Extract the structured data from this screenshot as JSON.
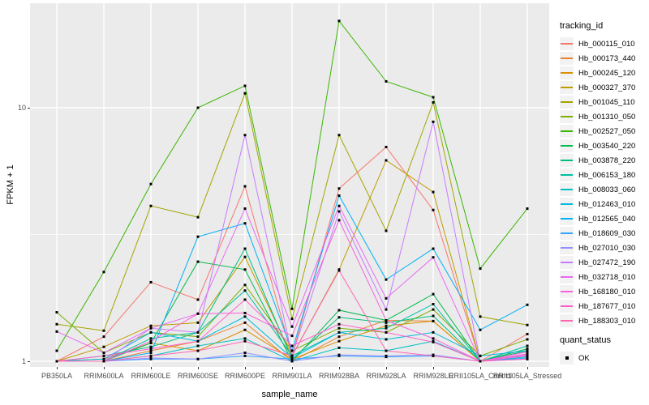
{
  "chart_data": {
    "type": "line",
    "title": "",
    "xlabel": "sample_name",
    "ylabel": "FPKM + 1",
    "y_scale": "log10",
    "y_ticks": [
      1,
      10
    ],
    "y_minor_gridlines": [
      3.1623
    ],
    "ylim": [
      0.95,
      25.5
    ],
    "grid": true,
    "panel_background": "#EBEBEB",
    "gridline_color": "#FFFFFF",
    "tick_label_color": "#4D4D4D",
    "marker": "black-square",
    "marker_color": "#000000",
    "categories": [
      "PB350LA",
      "RRIM600LA",
      "RRIM600LE",
      "RRIM600SE",
      "RRIM600PE",
      "RRIM901LA",
      "RRIM928BA",
      "RRIM928LA",
      "RRIM928LE",
      "RRII105LA_Control",
      "RRII105LA_Stressed"
    ],
    "legend": {
      "title": "tracking_id",
      "position": "right"
    },
    "legend2": {
      "title": "quant_status",
      "items": [
        {
          "label": "OK",
          "marker": "black-square"
        }
      ]
    },
    "series": [
      {
        "name": "Hb_000115_010",
        "color": "#F8766D",
        "values": [
          1.0,
          1.25,
          2.05,
          1.75,
          4.9,
          1.05,
          4.8,
          7.0,
          3.95,
          1.0,
          1.28
        ]
      },
      {
        "name": "Hb_000173_440",
        "color": "#EA8331",
        "values": [
          1.0,
          1.0,
          1.1,
          1.2,
          1.42,
          1.0,
          1.25,
          1.45,
          1.44,
          1.0,
          1.07
        ]
      },
      {
        "name": "Hb_000245_120",
        "color": "#D89000",
        "values": [
          1.0,
          1.02,
          1.18,
          1.1,
          1.33,
          1.02,
          1.2,
          1.38,
          1.44,
          1.0,
          1.05
        ]
      },
      {
        "name": "Hb_000327_370",
        "color": "#C09B00",
        "values": [
          1.0,
          1.14,
          1.38,
          1.42,
          2.58,
          1.05,
          2.3,
          6.2,
          4.65,
          1.0,
          1.1
        ]
      },
      {
        "name": "Hb_001045_110",
        "color": "#A3A500",
        "values": [
          1.4,
          1.32,
          4.1,
          3.7,
          11.4,
          1.47,
          7.8,
          3.27,
          10.5,
          1.5,
          1.39
        ]
      },
      {
        "name": "Hb_001310_050",
        "color": "#7CAE00",
        "values": [
          1.56,
          1.08,
          1.3,
          1.25,
          2.0,
          1.1,
          1.35,
          1.3,
          1.6,
          1.05,
          1.22
        ]
      },
      {
        "name": "Hb_002527_050",
        "color": "#39B600",
        "values": [
          1.1,
          2.25,
          5.0,
          10.0,
          12.2,
          1.61,
          22.0,
          12.7,
          11.0,
          2.32,
          4.0
        ]
      },
      {
        "name": "Hb_003540_220",
        "color": "#00BB4E",
        "values": [
          1.0,
          1.0,
          1.18,
          2.47,
          2.3,
          1.0,
          1.59,
          1.45,
          1.84,
          1.0,
          1.12
        ]
      },
      {
        "name": "Hb_003878_220",
        "color": "#00BF7D",
        "values": [
          1.0,
          1.05,
          1.14,
          1.3,
          2.78,
          1.02,
          1.49,
          1.42,
          1.51,
          1.0,
          1.1
        ]
      },
      {
        "name": "Hb_006153_180",
        "color": "#00C1A3",
        "values": [
          1.0,
          1.0,
          1.23,
          1.3,
          1.9,
          1.05,
          1.3,
          1.35,
          1.68,
          1.0,
          1.15
        ]
      },
      {
        "name": "Hb_008033_060",
        "color": "#00BFC4",
        "values": [
          1.0,
          1.0,
          1.05,
          1.15,
          1.23,
          1.0,
          1.13,
          1.1,
          1.2,
          1.0,
          1.04
        ]
      },
      {
        "name": "Hb_012463_010",
        "color": "#00BAE0",
        "values": [
          1.0,
          1.02,
          1.3,
          1.2,
          1.5,
          1.03,
          1.3,
          1.22,
          1.3,
          1.05,
          1.1
        ]
      },
      {
        "name": "Hb_012565_040",
        "color": "#00B0F6",
        "values": [
          1.0,
          1.0,
          1.08,
          3.1,
          3.5,
          1.1,
          4.5,
          2.1,
          2.78,
          1.33,
          1.67
        ]
      },
      {
        "name": "Hb_018609_030",
        "color": "#35A2FF",
        "values": [
          1.0,
          1.0,
          1.02,
          1.02,
          1.05,
          1.02,
          1.05,
          1.04,
          1.05,
          1.0,
          1.03
        ]
      },
      {
        "name": "Hb_027010_030",
        "color": "#9590FF",
        "values": [
          1.0,
          1.0,
          1.03,
          1.02,
          1.08,
          1.0,
          1.06,
          1.05,
          1.06,
          1.0,
          1.02
        ]
      },
      {
        "name": "Hb_027472_190",
        "color": "#C77CFF",
        "values": [
          1.0,
          1.0,
          1.35,
          1.3,
          7.8,
          1.05,
          3.9,
          1.6,
          8.8,
          1.0,
          1.05
        ]
      },
      {
        "name": "Hb_032718_010",
        "color": "#E76BF3",
        "values": [
          1.31,
          1.08,
          1.35,
          1.54,
          4.0,
          1.37,
          4.1,
          1.77,
          2.57,
          1.0,
          1.07
        ]
      },
      {
        "name": "Hb_168180_010",
        "color": "#FA62DB",
        "values": [
          1.0,
          1.0,
          1.2,
          1.54,
          1.55,
          1.26,
          3.6,
          1.45,
          1.23,
          1.0,
          1.09
        ]
      },
      {
        "name": "Hb_187677_010",
        "color": "#FF61C9",
        "values": [
          1.0,
          1.05,
          1.12,
          1.2,
          1.75,
          1.15,
          1.4,
          1.3,
          1.19,
          1.0,
          1.06
        ]
      },
      {
        "name": "Hb_188303_010",
        "color": "#FF67B3",
        "values": [
          1.0,
          1.0,
          1.05,
          1.1,
          1.2,
          1.05,
          2.28,
          1.1,
          1.05,
          1.0,
          1.02
        ]
      }
    ]
  }
}
